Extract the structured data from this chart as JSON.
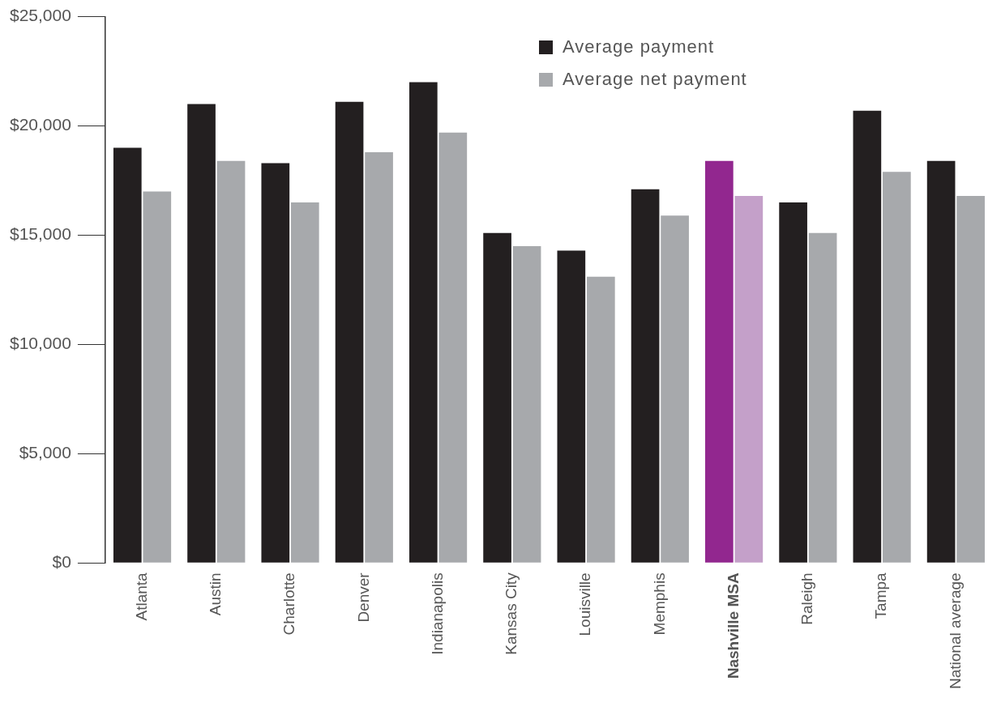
{
  "chart_data": {
    "type": "bar",
    "categories": [
      "Atlanta",
      "Austin",
      "Charlotte",
      "Denver",
      "Indianapolis",
      "Kansas City",
      "Louisville",
      "Memphis",
      "Nashville MSA",
      "Raleigh",
      "Tampa",
      "National average"
    ],
    "series": [
      {
        "name": "Average payment",
        "color": "#231f20",
        "colors": [
          "#231f20",
          "#231f20",
          "#231f20",
          "#231f20",
          "#231f20",
          "#231f20",
          "#231f20",
          "#231f20",
          "#92278f",
          "#231f20",
          "#231f20",
          "#231f20"
        ],
        "values": [
          19000,
          21000,
          18300,
          21100,
          22000,
          15100,
          14300,
          17100,
          18400,
          16500,
          20700,
          18400
        ]
      },
      {
        "name": "Average net payment",
        "color": "#a7a9ac",
        "colors": [
          "#a7a9ac",
          "#a7a9ac",
          "#a7a9ac",
          "#a7a9ac",
          "#a7a9ac",
          "#a7a9ac",
          "#a7a9ac",
          "#a7a9ac",
          "#c4a0c9",
          "#a7a9ac",
          "#a7a9ac",
          "#a7a9ac"
        ],
        "values": [
          17000,
          18400,
          16500,
          18800,
          19700,
          14500,
          13100,
          15900,
          16800,
          15100,
          17900,
          16800
        ]
      }
    ],
    "ylim": [
      0,
      25000
    ],
    "yticks": [
      {
        "value": 0,
        "label": "$0"
      },
      {
        "value": 5000,
        "label": "$5,000"
      },
      {
        "value": 10000,
        "label": "$10,000"
      },
      {
        "value": 15000,
        "label": "$15,000"
      },
      {
        "value": 20000,
        "label": "$20,000"
      },
      {
        "value": 25000,
        "label": "$25,000"
      }
    ],
    "grid": false,
    "legend": "top"
  }
}
